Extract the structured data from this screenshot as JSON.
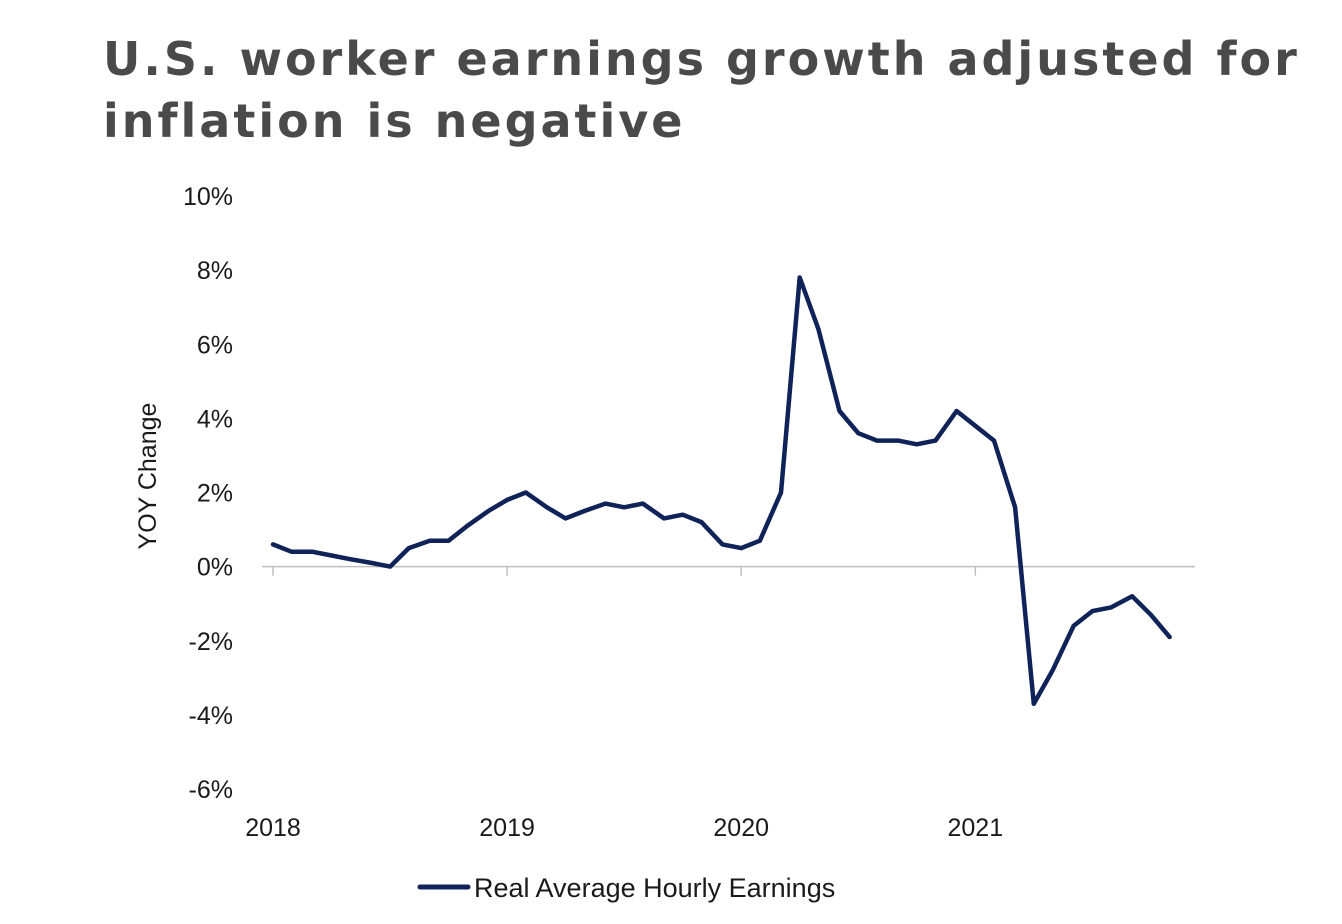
{
  "chart_data": {
    "type": "line",
    "title": "U.S. worker earnings growth adjusted for inflation is negative",
    "xlabel": "",
    "ylabel": "YOY Change",
    "ylim": [
      -6,
      10
    ],
    "y_ticks": [
      -6,
      -4,
      -2,
      0,
      2,
      4,
      6,
      8,
      10
    ],
    "y_tick_labels": [
      "-6%",
      "-4%",
      "-2%",
      "0%",
      "2%",
      "4%",
      "6%",
      "8%",
      "10%"
    ],
    "x_ticks": [
      2018,
      2019,
      2020,
      2021
    ],
    "x_tick_labels": [
      "2018",
      "2019",
      "2020",
      "2021"
    ],
    "xlim": [
      2018,
      2021.9
    ],
    "legend_position": "bottom-center",
    "grid": false,
    "series": [
      {
        "name": "Real Average Hourly Earnings",
        "color": "#0f2358",
        "points": [
          [
            2018.0,
            0.6
          ],
          [
            2018.08,
            0.4
          ],
          [
            2018.17,
            0.4
          ],
          [
            2018.25,
            0.3
          ],
          [
            2018.33,
            0.2
          ],
          [
            2018.42,
            0.1
          ],
          [
            2018.5,
            0.0
          ],
          [
            2018.58,
            0.5
          ],
          [
            2018.67,
            0.7
          ],
          [
            2018.75,
            0.7
          ],
          [
            2018.83,
            1.1
          ],
          [
            2018.92,
            1.5
          ],
          [
            2019.0,
            1.8
          ],
          [
            2019.08,
            2.0
          ],
          [
            2019.17,
            1.6
          ],
          [
            2019.25,
            1.3
          ],
          [
            2019.33,
            1.5
          ],
          [
            2019.42,
            1.7
          ],
          [
            2019.5,
            1.6
          ],
          [
            2019.58,
            1.7
          ],
          [
            2019.67,
            1.3
          ],
          [
            2019.75,
            1.4
          ],
          [
            2019.83,
            1.2
          ],
          [
            2019.92,
            0.6
          ],
          [
            2020.0,
            0.5
          ],
          [
            2020.08,
            0.7
          ],
          [
            2020.17,
            2.0
          ],
          [
            2020.25,
            7.8
          ],
          [
            2020.33,
            6.4
          ],
          [
            2020.42,
            4.2
          ],
          [
            2020.5,
            3.6
          ],
          [
            2020.58,
            3.4
          ],
          [
            2020.67,
            3.4
          ],
          [
            2020.75,
            3.3
          ],
          [
            2020.83,
            3.4
          ],
          [
            2020.92,
            4.2
          ],
          [
            2021.0,
            3.8
          ],
          [
            2021.08,
            3.4
          ],
          [
            2021.17,
            1.6
          ],
          [
            2021.25,
            -3.7
          ],
          [
            2021.33,
            -2.8
          ],
          [
            2021.42,
            -1.6
          ],
          [
            2021.5,
            -1.2
          ],
          [
            2021.58,
            -1.1
          ],
          [
            2021.67,
            -0.8
          ],
          [
            2021.75,
            -1.3
          ],
          [
            2021.83,
            -1.9
          ]
        ]
      }
    ]
  }
}
